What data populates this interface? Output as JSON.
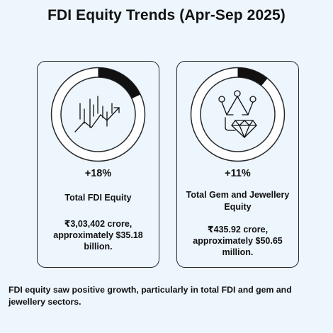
{
  "title": "FDI Equity Trends (Apr-Sep 2025)",
  "cards": [
    {
      "icon": "growth-chart-icon",
      "percent": "+18%",
      "progress_fraction": 0.18,
      "label": "Total FDI Equity",
      "value": "₹3,03,402 crore, approximately $35.18 billion."
    },
    {
      "icon": "crown-diamond-icon",
      "percent": "+11%",
      "progress_fraction": 0.11,
      "label": "Total Gem and Jewellery Equity",
      "value": "₹435.92 crore, approximately $50.65 million."
    }
  ],
  "summary": "FDI equity saw positive growth, particularly in total FDI and gem and jewellery sectors.",
  "colors": {
    "background": "#edf5fd",
    "ring_track": "#ffffff",
    "ring_fill": "#111111",
    "text": "#111111"
  }
}
